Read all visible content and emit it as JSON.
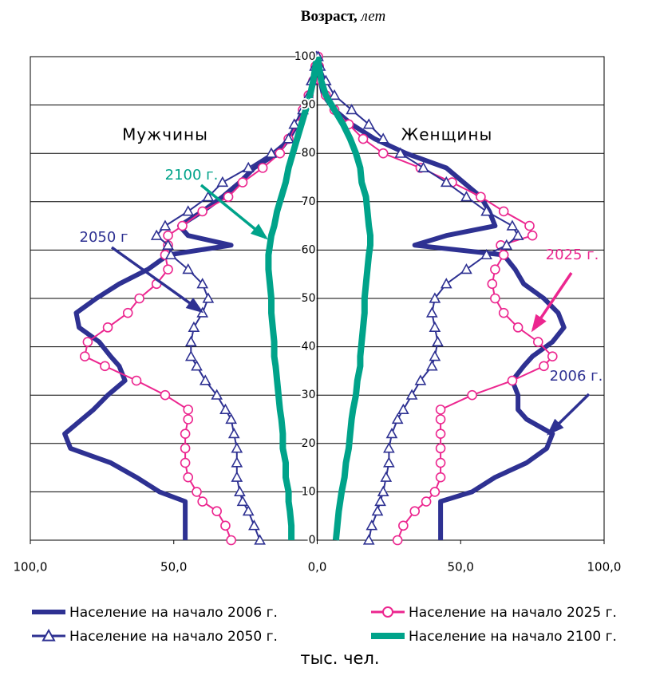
{
  "chart_data": {
    "type": "pyramid",
    "ylabel": "Возраст,",
    "ylabel_unit": "лет",
    "xlabel": "тыс. чел.",
    "left_label": "Мужчины",
    "right_label": "Женщины",
    "xlim": [
      -100,
      100
    ],
    "xticks": [
      {
        "value": -100,
        "label": "100,0"
      },
      {
        "value": -50,
        "label": "50,0"
      },
      {
        "value": 0,
        "label": "0,0"
      },
      {
        "value": 50,
        "label": "50,0"
      },
      {
        "value": 100,
        "label": "100,0"
      }
    ],
    "ylim": [
      0,
      100
    ],
    "yticks": [
      0,
      10,
      20,
      30,
      40,
      50,
      60,
      70,
      80,
      90,
      100
    ],
    "grid": true,
    "ages": [
      0,
      3,
      6,
      8,
      10,
      13,
      16,
      19,
      22,
      25,
      27,
      30,
      33,
      36,
      38,
      41,
      44,
      47,
      50,
      53,
      56,
      59,
      61,
      63,
      65,
      68,
      71,
      74,
      77,
      80,
      83,
      86,
      89,
      92,
      95,
      98,
      100
    ],
    "series": [
      {
        "name": "Население на начало 2006 г.",
        "color": "#2e3192",
        "marker": "none",
        "width": 6,
        "left_values": [
          46,
          46,
          46,
          46,
          55,
          63,
          72,
          86,
          88,
          82,
          78,
          73,
          67,
          69,
          72,
          76,
          83,
          84,
          77,
          69,
          59,
          52,
          30,
          45,
          48,
          40,
          33,
          27,
          22,
          14,
          10,
          7,
          5,
          2.5,
          1.4,
          0.6,
          0.2
        ],
        "right_values": [
          43,
          43,
          43,
          43,
          54,
          62,
          73,
          80,
          82,
          73,
          70,
          70,
          68,
          72,
          75,
          82,
          86,
          84,
          79,
          72,
          69,
          65,
          34,
          45,
          62,
          60,
          57,
          51,
          45,
          31,
          20,
          12,
          6,
          2.2,
          1,
          0.5,
          0.2
        ]
      },
      {
        "name": "Население на начало 2025 г.",
        "color": "#ec268f",
        "marker": "circle",
        "width": 2,
        "left_values": [
          30,
          32,
          35,
          40,
          42,
          45,
          46,
          46,
          46,
          45,
          45,
          53,
          63,
          74,
          81,
          80,
          73,
          66,
          62,
          56,
          52,
          53,
          52,
          52,
          47,
          40,
          31,
          26,
          19,
          13,
          10,
          7,
          5,
          3,
          1.4,
          0.6,
          0.3
        ],
        "right_values": [
          28,
          30,
          34,
          38,
          41,
          43,
          43,
          43,
          43,
          43,
          43,
          54,
          68,
          79,
          82,
          77,
          70,
          65,
          62,
          61,
          62,
          65,
          64,
          75,
          74,
          65,
          57,
          47,
          36,
          23,
          16,
          11,
          6,
          3,
          1.4,
          0.6,
          0.3
        ]
      },
      {
        "name": "Население на начало 2050 г.",
        "color": "#2e3192",
        "marker": "triangle",
        "width": 2,
        "left_values": [
          20,
          22,
          24,
          26,
          27,
          28,
          28,
          28,
          29,
          30,
          32,
          35,
          39,
          42,
          44,
          44,
          43,
          40,
          38,
          40,
          45,
          51,
          52,
          56,
          53,
          45,
          38,
          33,
          24,
          16,
          10,
          8,
          5,
          3,
          2,
          0.8,
          0.3
        ],
        "right_values": [
          18,
          19,
          21,
          22,
          23,
          24,
          25,
          25,
          26,
          28,
          30,
          33,
          36,
          40,
          41,
          42,
          41,
          40,
          41,
          45,
          52,
          59,
          66,
          70,
          68,
          59,
          52,
          45,
          37,
          29,
          23,
          18,
          12,
          6,
          3,
          1,
          0.3
        ]
      },
      {
        "name": "Население на начало 2100 г.",
        "color": "#00a38a",
        "marker": "none",
        "width": 8,
        "left_values": [
          9,
          9,
          9.5,
          10,
          10,
          11,
          11,
          12,
          12,
          12.5,
          13,
          13.5,
          14,
          14.5,
          15,
          15,
          15.5,
          16,
          16,
          16.5,
          17,
          17,
          16.5,
          16,
          15,
          14,
          12.5,
          11,
          10,
          8.5,
          7,
          5.5,
          4,
          2.5,
          1.4,
          0.6,
          0.2
        ],
        "right_values": [
          6.5,
          7,
          7.5,
          8,
          8.5,
          9.5,
          10,
          11,
          11.5,
          12,
          12.5,
          13.5,
          14,
          15,
          15,
          15.5,
          16,
          16.5,
          16.5,
          17,
          17.5,
          18,
          18.5,
          18.5,
          18,
          17.5,
          17,
          15.5,
          15,
          13.5,
          11.5,
          9,
          6,
          3,
          1.4,
          0.6,
          0.2
        ]
      }
    ],
    "annotations": [
      {
        "text": "2100 г.",
        "color": "#00a38a"
      },
      {
        "text": "2050 г",
        "color": "#2e3192"
      },
      {
        "text": "2025 г.",
        "color": "#ec268f"
      },
      {
        "text": "2006 г.",
        "color": "#2e3192"
      }
    ]
  }
}
